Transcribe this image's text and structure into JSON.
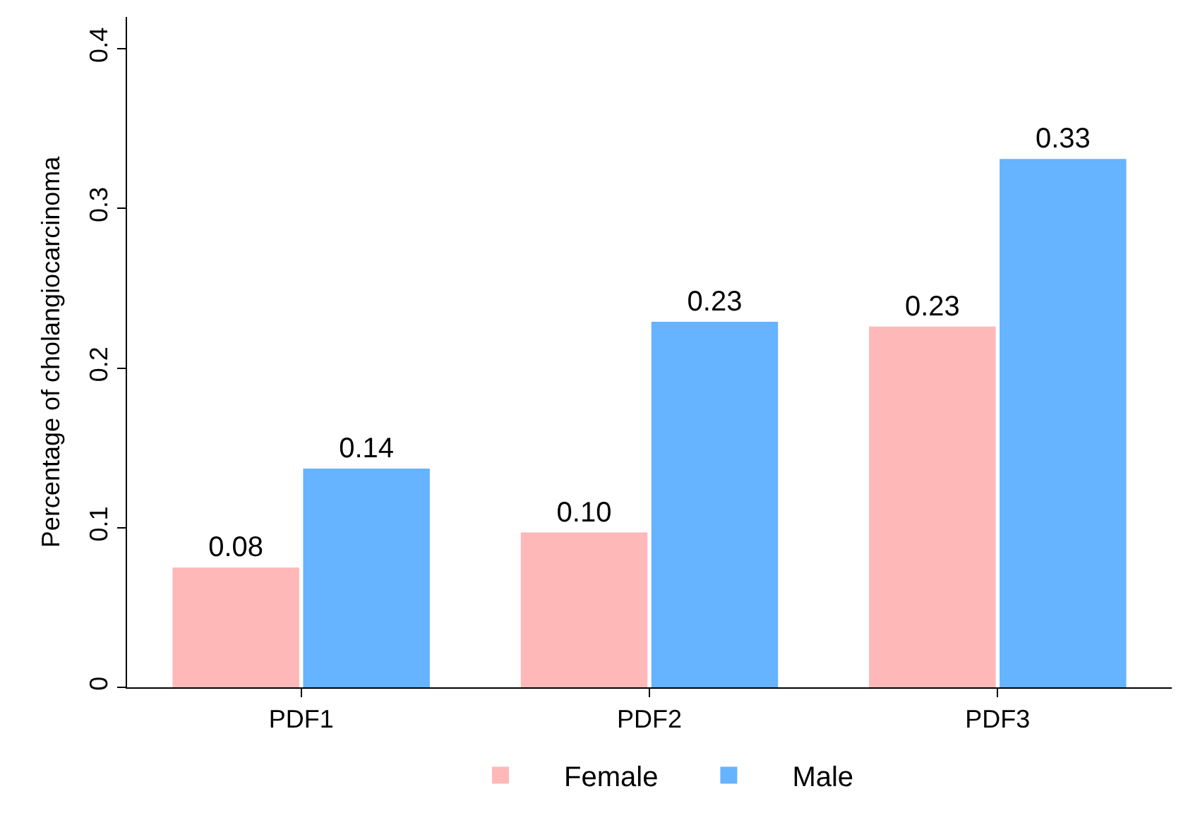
{
  "chart_data": {
    "type": "bar",
    "ylabel": "Percentage of cholangiocarcinoma",
    "categories": [
      "PDF1",
      "PDF2",
      "PDF3"
    ],
    "series": [
      {
        "name": "Female",
        "color": "#ffb8b8",
        "values": [
          0.075,
          0.097,
          0.226
        ],
        "value_labels": [
          "0.08",
          "0.10",
          "0.23"
        ]
      },
      {
        "name": "Male",
        "color": "#66b3ff",
        "values": [
          0.137,
          0.229,
          0.331
        ],
        "value_labels": [
          "0.14",
          "0.23",
          "0.33"
        ]
      }
    ],
    "ylim": [
      0,
      0.42
    ],
    "yticks": [
      0,
      0.1,
      0.2,
      0.3,
      0.4
    ],
    "grid": false,
    "legend": "bottom"
  }
}
